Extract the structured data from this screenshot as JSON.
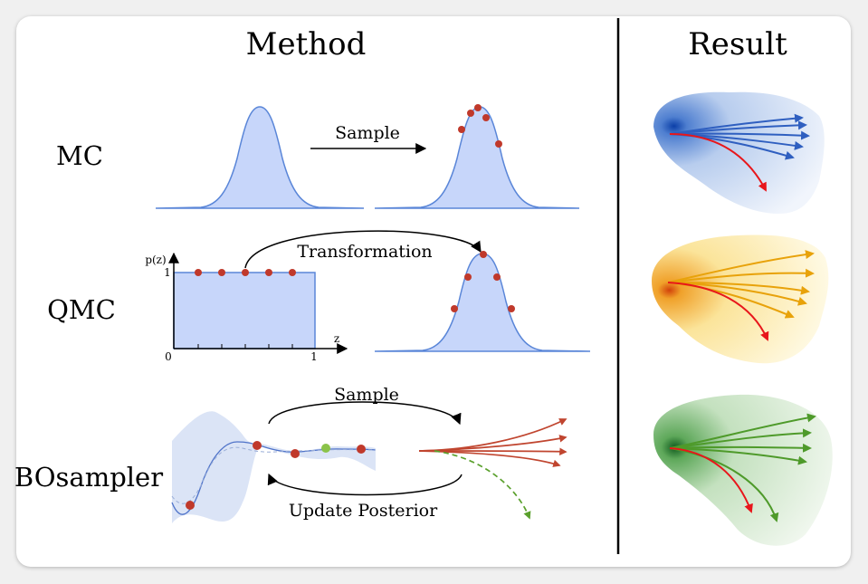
{
  "headings": {
    "method": "Method",
    "result": "Result"
  },
  "rows": {
    "mc": {
      "label": "MC",
      "arrow_label": "Sample"
    },
    "qmc": {
      "label": "QMC",
      "arrow_label": "Transformation",
      "y_axis_label": "p(z)",
      "x_axis_label": "z",
      "y_tick": "1",
      "x_tick_start": "0",
      "x_tick_end": "1"
    },
    "bo": {
      "label": "BOsampler",
      "top_label": "Sample",
      "bottom_label": "Update Posterior"
    }
  },
  "colors": {
    "gaussian_fill": "#c7d6fa",
    "gaussian_stroke": "#5a86d8",
    "sample_point": "#c0392b",
    "selected_point": "#8bc34a",
    "mc_result": "#2f5fc0",
    "qmc_result": "#e8a20a",
    "bo_result": "#4e9a2a",
    "trajectory_red": "#e8161b"
  }
}
